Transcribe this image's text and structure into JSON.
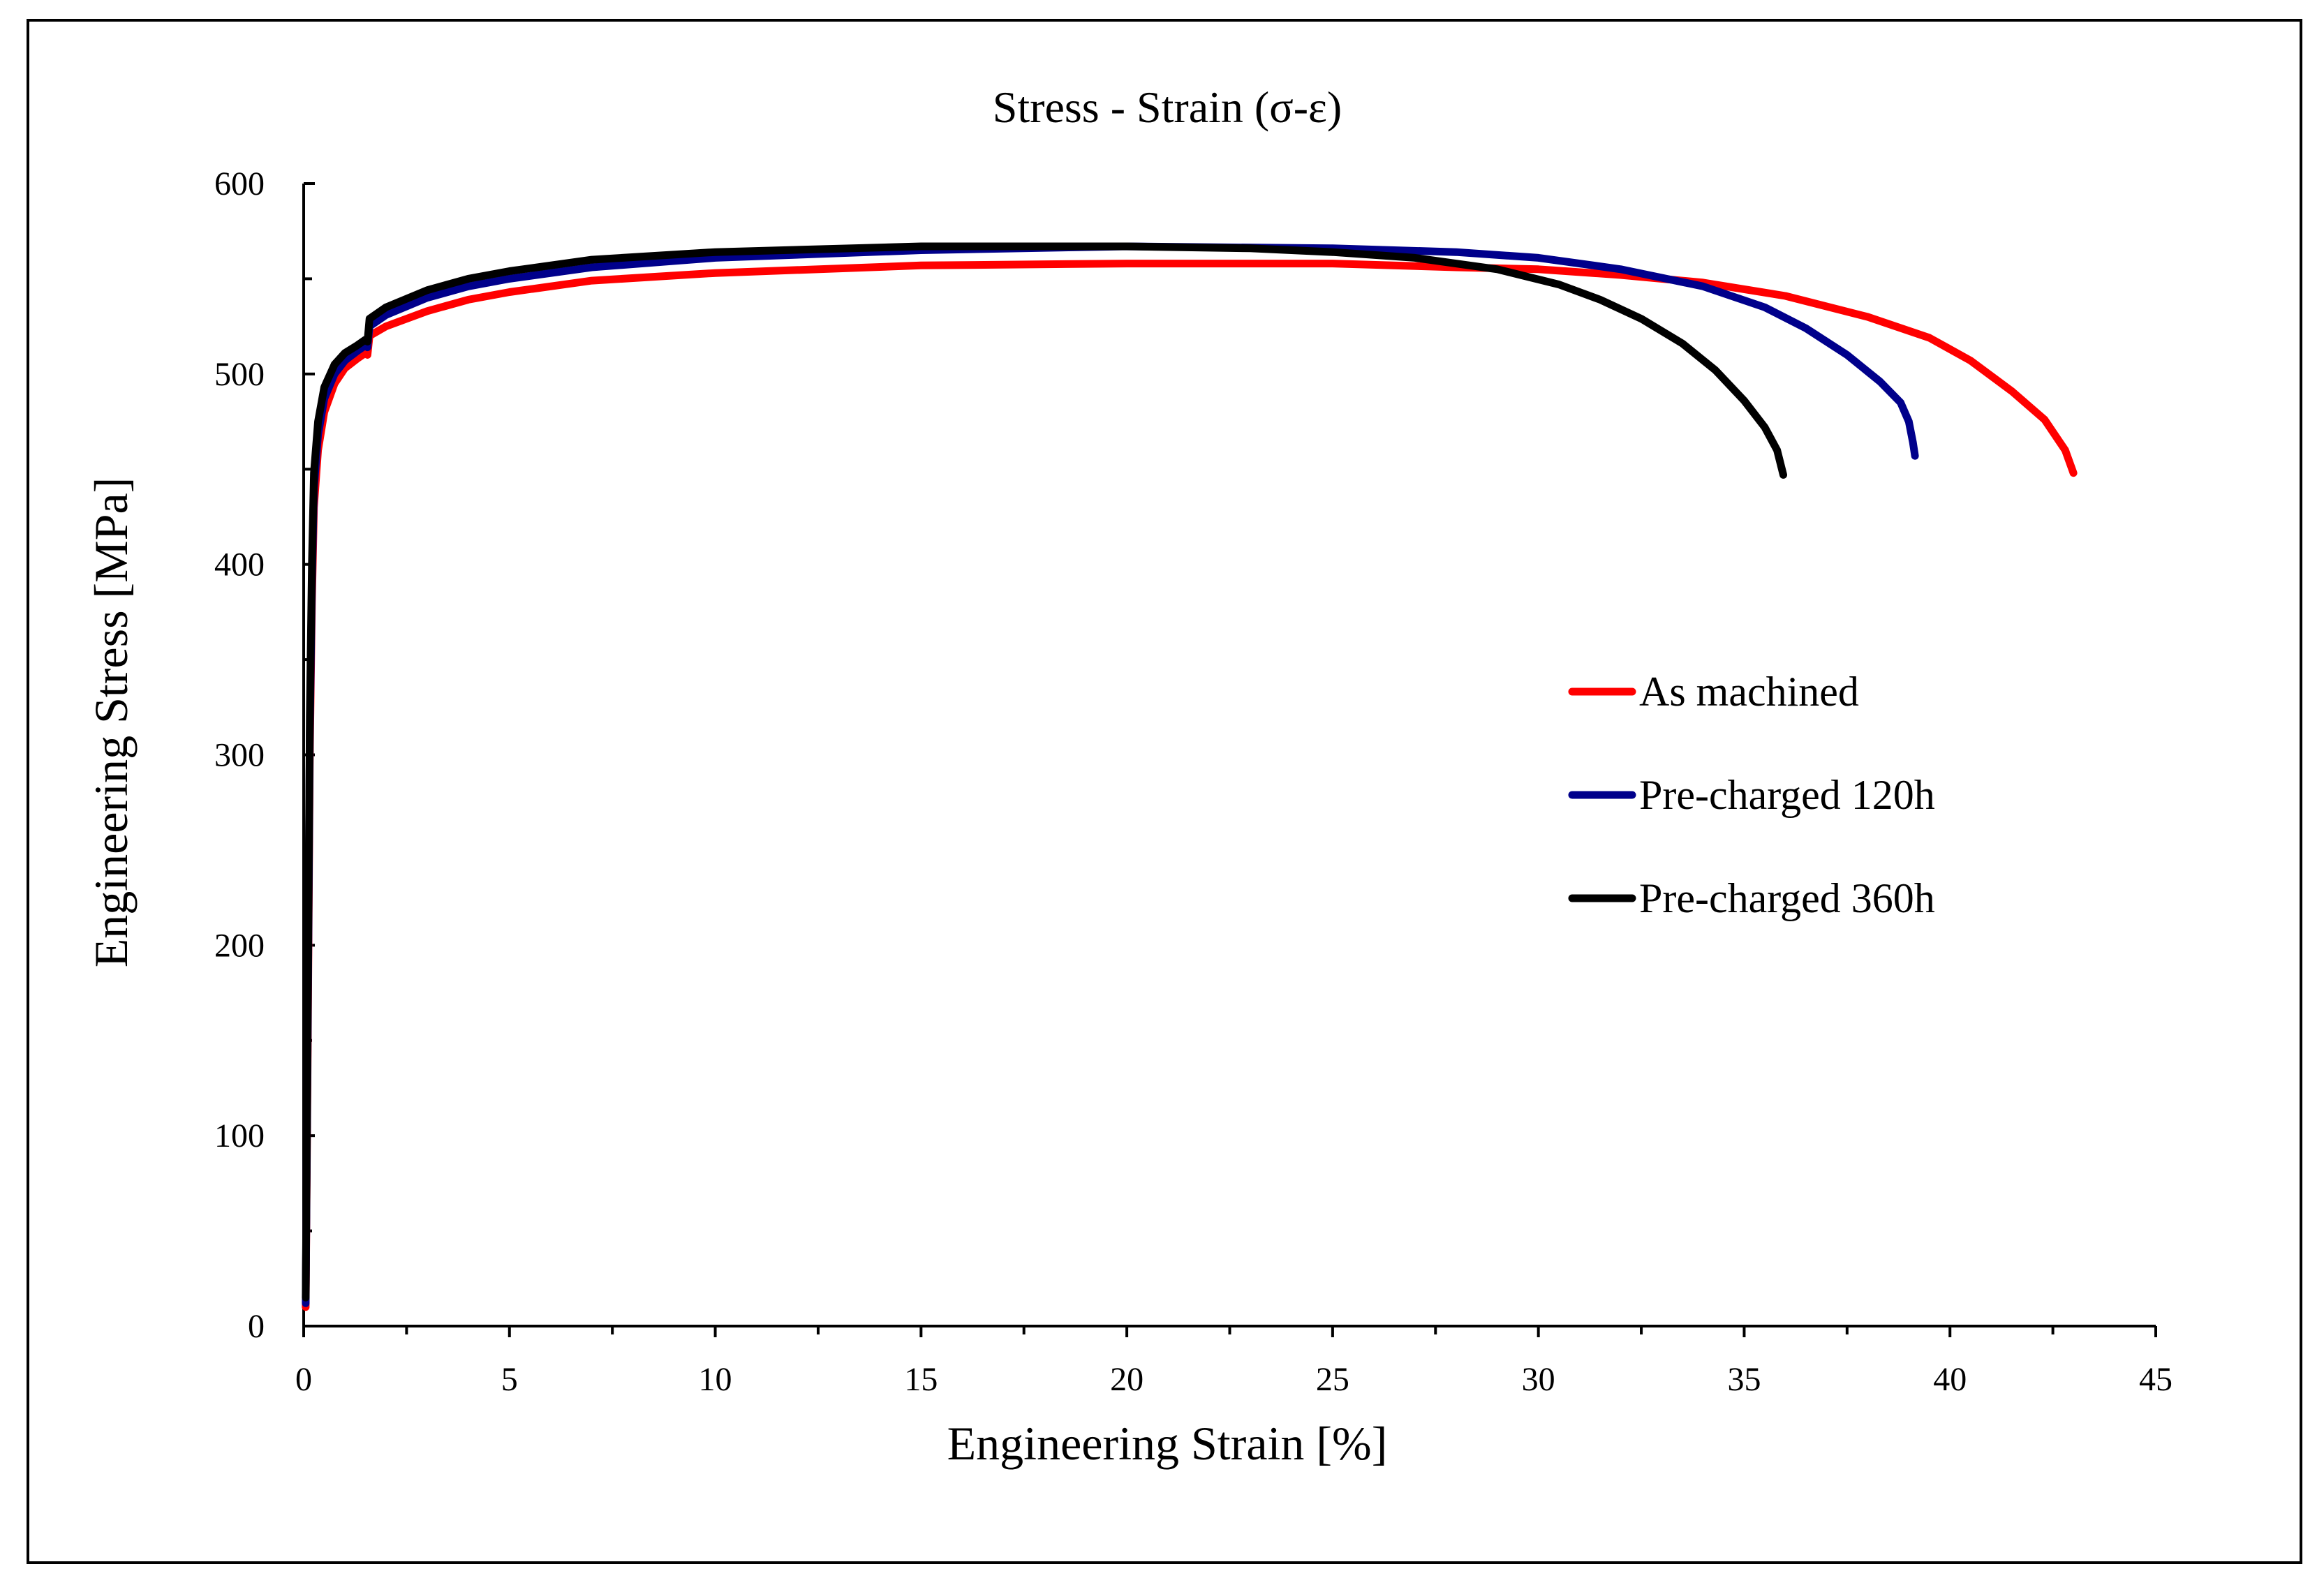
{
  "chart_data": {
    "type": "line",
    "title": "Stress - Strain (σ-ε)",
    "xlabel": "Engineering Strain [%]",
    "ylabel": "Engineering Stress [MPa]",
    "xlim": [
      0,
      45
    ],
    "ylim": [
      0,
      600
    ],
    "xticks": [
      0,
      5,
      10,
      15,
      20,
      25,
      30,
      35,
      40,
      45
    ],
    "yticks": [
      0,
      100,
      200,
      300,
      400,
      500,
      600
    ],
    "grid": false,
    "legend_position": "right",
    "series": [
      {
        "name": "As machined",
        "color": "#ff0000",
        "points": [
          [
            0.05,
            10
          ],
          [
            0.1,
            150
          ],
          [
            0.15,
            300
          ],
          [
            0.2,
            380
          ],
          [
            0.25,
            430
          ],
          [
            0.35,
            460
          ],
          [
            0.5,
            480
          ],
          [
            0.75,
            495
          ],
          [
            1.0,
            503
          ],
          [
            1.3,
            508
          ],
          [
            1.5,
            511
          ],
          [
            1.55,
            510
          ],
          [
            1.6,
            520
          ],
          [
            2.0,
            525
          ],
          [
            3.0,
            533
          ],
          [
            4.0,
            539
          ],
          [
            5.0,
            543
          ],
          [
            7.0,
            549
          ],
          [
            10.0,
            553
          ],
          [
            15.0,
            557
          ],
          [
            20.0,
            558
          ],
          [
            25.0,
            558
          ],
          [
            28.0,
            556
          ],
          [
            30.0,
            555
          ],
          [
            32.0,
            552
          ],
          [
            34.0,
            548
          ],
          [
            36.0,
            541
          ],
          [
            38.0,
            530
          ],
          [
            39.5,
            519
          ],
          [
            40.5,
            507
          ],
          [
            41.5,
            491
          ],
          [
            42.3,
            476
          ],
          [
            42.8,
            460
          ],
          [
            43.0,
            448
          ]
        ]
      },
      {
        "name": "Pre-charged 120h",
        "color": "#00008b",
        "points": [
          [
            0.05,
            12
          ],
          [
            0.1,
            160
          ],
          [
            0.15,
            310
          ],
          [
            0.2,
            390
          ],
          [
            0.25,
            440
          ],
          [
            0.35,
            468
          ],
          [
            0.5,
            487
          ],
          [
            0.75,
            500
          ],
          [
            1.0,
            507
          ],
          [
            1.3,
            512
          ],
          [
            1.5,
            515
          ],
          [
            1.55,
            514
          ],
          [
            1.6,
            525
          ],
          [
            2.0,
            531
          ],
          [
            3.0,
            540
          ],
          [
            4.0,
            546
          ],
          [
            5.0,
            550
          ],
          [
            7.0,
            556
          ],
          [
            10.0,
            561
          ],
          [
            15.0,
            565
          ],
          [
            20.0,
            567
          ],
          [
            25.0,
            566
          ],
          [
            28.0,
            564
          ],
          [
            30.0,
            561
          ],
          [
            32.0,
            555
          ],
          [
            34.0,
            546
          ],
          [
            35.5,
            535
          ],
          [
            36.5,
            524
          ],
          [
            37.5,
            510
          ],
          [
            38.3,
            496
          ],
          [
            38.8,
            485
          ],
          [
            39.0,
            475
          ],
          [
            39.1,
            464
          ],
          [
            39.15,
            457
          ]
        ]
      },
      {
        "name": "Pre-charged 360h",
        "color": "#000000",
        "points": [
          [
            0.05,
            15
          ],
          [
            0.1,
            170
          ],
          [
            0.15,
            320
          ],
          [
            0.2,
            400
          ],
          [
            0.25,
            448
          ],
          [
            0.35,
            475
          ],
          [
            0.5,
            493
          ],
          [
            0.75,
            505
          ],
          [
            1.0,
            511
          ],
          [
            1.3,
            515
          ],
          [
            1.5,
            518
          ],
          [
            1.55,
            517
          ],
          [
            1.6,
            529
          ],
          [
            2.0,
            535
          ],
          [
            3.0,
            544
          ],
          [
            4.0,
            550
          ],
          [
            5.0,
            554
          ],
          [
            7.0,
            560
          ],
          [
            10.0,
            564
          ],
          [
            15.0,
            567
          ],
          [
            20.0,
            567
          ],
          [
            23.0,
            566
          ],
          [
            25.0,
            564
          ],
          [
            27.0,
            561
          ],
          [
            29.0,
            555
          ],
          [
            30.5,
            547
          ],
          [
            31.5,
            539
          ],
          [
            32.5,
            529
          ],
          [
            33.5,
            516
          ],
          [
            34.3,
            502
          ],
          [
            35.0,
            486
          ],
          [
            35.5,
            472
          ],
          [
            35.8,
            460
          ],
          [
            35.95,
            447
          ]
        ]
      }
    ]
  }
}
